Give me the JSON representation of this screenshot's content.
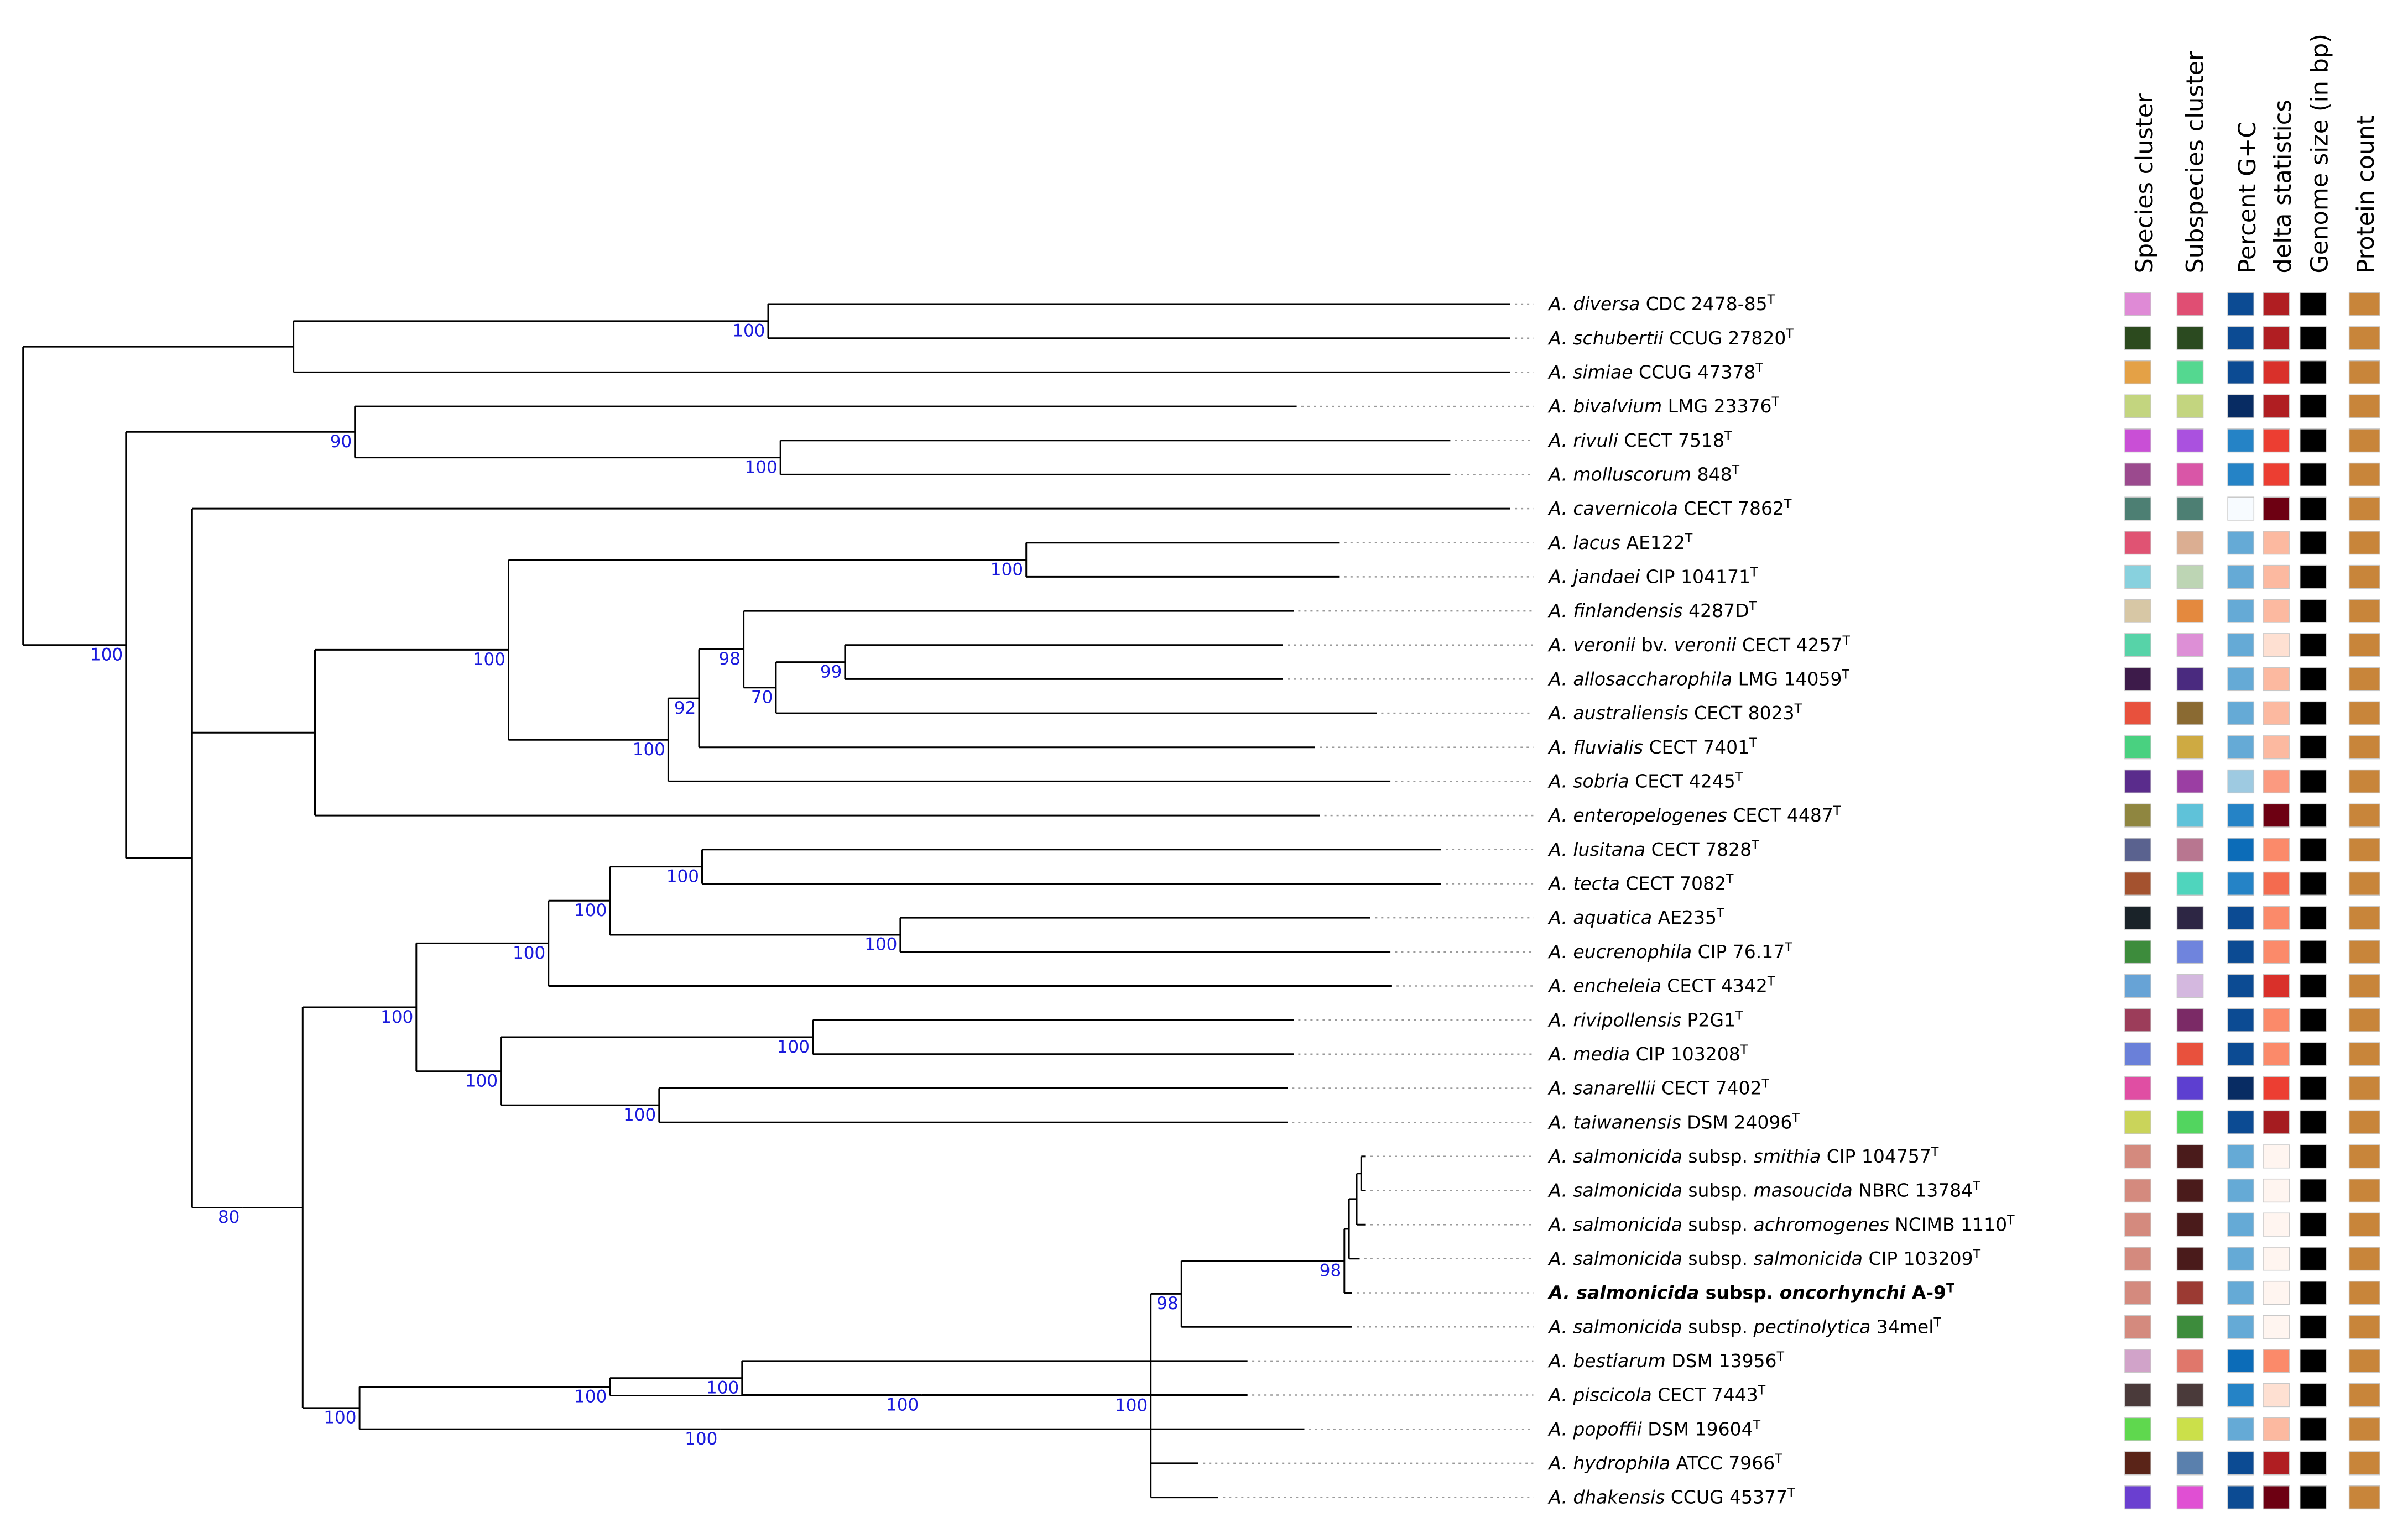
{
  "columns": [
    {
      "key": "species_cluster",
      "label": "Species cluster"
    },
    {
      "key": "subspecies_cluster",
      "label": "Subspecies cluster"
    },
    {
      "key": "gc",
      "label": "Percent G+C"
    },
    {
      "key": "delta",
      "label": "delta statistics"
    },
    {
      "key": "genome",
      "label": "Genome size (in bp)"
    },
    {
      "key": "protein",
      "label": "Protein count"
    }
  ],
  "taxa": [
    {
      "genus": "A.",
      "epithet": "diversa",
      "pre": "",
      "sub": "",
      "strain": "CDC 2478-85",
      "sup": "T",
      "bold": false,
      "colors": [
        "#df8ad6",
        "#e04e73",
        "#0c4b93",
        "#b01e22",
        "#000000",
        "#c8853a"
      ]
    },
    {
      "genus": "A.",
      "epithet": "schubertii",
      "pre": "",
      "sub": "",
      "strain": "CCUG 27820",
      "sup": "T",
      "bold": false,
      "colors": [
        "#2c4a1e",
        "#2b4a20",
        "#0c4b93",
        "#b01e22",
        "#000000",
        "#c8853a"
      ]
    },
    {
      "genus": "A.",
      "epithet": "simiae",
      "pre": "",
      "sub": "",
      "strain": "CCUG 47378",
      "sup": "T",
      "bold": false,
      "colors": [
        "#e4a146",
        "#54d890",
        "#0c4b93",
        "#d9302a",
        "#000000",
        "#c8853a"
      ]
    },
    {
      "genus": "A.",
      "epithet": "bivalvium",
      "pre": "",
      "sub": "",
      "strain": "LMG 23376",
      "sup": "T",
      "bold": false,
      "colors": [
        "#c3d57f",
        "#c3d57f",
        "#082c63",
        "#b01e22",
        "#000000",
        "#c8853a"
      ]
    },
    {
      "genus": "A.",
      "epithet": "rivuli",
      "pre": "",
      "sub": "",
      "strain": "CECT 7518",
      "sup": "T",
      "bold": false,
      "colors": [
        "#c94fd6",
        "#aa51df",
        "#2583c6",
        "#ec3e32",
        "#000000",
        "#c8853a"
      ]
    },
    {
      "genus": "A.",
      "epithet": "molluscorum",
      "pre": "",
      "sub": "",
      "strain": "848",
      "sup": "T",
      "bold": false,
      "colors": [
        "#9b4a8e",
        "#d956a7",
        "#2583c6",
        "#ec3e32",
        "#000000",
        "#c8853a"
      ]
    },
    {
      "genus": "A.",
      "epithet": "cavernicola",
      "pre": "",
      "sub": "",
      "strain": "CECT 7862",
      "sup": "T",
      "bold": false,
      "colors": [
        "#4d7f73",
        "#4d7f73",
        "#f7fbff",
        "#6d0012",
        "#000000",
        "#c8853a"
      ]
    },
    {
      "genus": "A.",
      "epithet": "lacus",
      "pre": "",
      "sub": "",
      "strain": "AE122",
      "sup": "T",
      "bold": false,
      "colors": [
        "#e05373",
        "#dbae92",
        "#65aad6",
        "#fcb9a0",
        "#000000",
        "#c8853a"
      ]
    },
    {
      "genus": "A.",
      "epithet": "jandaei",
      "pre": "",
      "sub": "",
      "strain": "CIP 104171",
      "sup": "T",
      "bold": false,
      "colors": [
        "#88d1de",
        "#bdd5b4",
        "#65aad6",
        "#fcb9a0",
        "#000000",
        "#c8853a"
      ]
    },
    {
      "genus": "A.",
      "epithet": "finlandensis",
      "pre": "",
      "sub": "",
      "strain": "4287D",
      "sup": "T",
      "bold": false,
      "colors": [
        "#d7c7a5",
        "#e4893e",
        "#65aad6",
        "#fcb9a0",
        "#000000",
        "#c8853a"
      ]
    },
    {
      "genus": "A.",
      "epithet": "veronii",
      "pre": "",
      "sub": "bv. veronii",
      "strain": "CECT 4257",
      "sup": "T",
      "bold": false,
      "colors": [
        "#57d3a8",
        "#dd8fd6",
        "#65aad6",
        "#fee0d2",
        "#000000",
        "#c8853a"
      ]
    },
    {
      "genus": "A.",
      "epithet": "allosaccharophila",
      "pre": "",
      "sub": "",
      "strain": "LMG 14059",
      "sup": "T",
      "bold": false,
      "colors": [
        "#3d1b4a",
        "#4a2a7f",
        "#65aad6",
        "#fcb9a0",
        "#000000",
        "#c8853a"
      ]
    },
    {
      "genus": "A.",
      "epithet": "australiensis",
      "pre": "",
      "sub": "",
      "strain": "CECT 8023",
      "sup": "T",
      "bold": false,
      "colors": [
        "#e8513d",
        "#8a6a32",
        "#65aad6",
        "#fcb9a0",
        "#000000",
        "#c8853a"
      ]
    },
    {
      "genus": "A.",
      "epithet": "fluvialis",
      "pre": "",
      "sub": "",
      "strain": "CECT 7401",
      "sup": "T",
      "bold": false,
      "colors": [
        "#49d180",
        "#ceaa42",
        "#65aad6",
        "#fcb9a0",
        "#000000",
        "#c8853a"
      ]
    },
    {
      "genus": "A.",
      "epithet": "sobria",
      "pre": "",
      "sub": "",
      "strain": "CECT 4245",
      "sup": "T",
      "bold": false,
      "colors": [
        "#5a2c8c",
        "#9b3ea3",
        "#9ecae1",
        "#fb9a80",
        "#000000",
        "#c8853a"
      ]
    },
    {
      "genus": "A.",
      "epithet": "enteropelogenes",
      "pre": "",
      "sub": "",
      "strain": "CECT 4487",
      "sup": "T",
      "bold": false,
      "colors": [
        "#8f8640",
        "#5fc2d9",
        "#2583c6",
        "#6d0012",
        "#000000",
        "#c8853a"
      ]
    },
    {
      "genus": "A.",
      "epithet": "lusitana",
      "pre": "",
      "sub": "",
      "strain": "CECT 7828",
      "sup": "T",
      "bold": false,
      "colors": [
        "#5a628f",
        "#b87690",
        "#0c6cb8",
        "#fb8a6a",
        "#000000",
        "#c8853a"
      ]
    },
    {
      "genus": "A.",
      "epithet": "tecta",
      "pre": "",
      "sub": "",
      "strain": "CECT 7082",
      "sup": "T",
      "bold": false,
      "colors": [
        "#a4522f",
        "#4fd5bd",
        "#2583c6",
        "#f46b4f",
        "#000000",
        "#c8853a"
      ]
    },
    {
      "genus": "A.",
      "epithet": "aquatica",
      "pre": "",
      "sub": "",
      "strain": "AE235",
      "sup": "T",
      "bold": false,
      "colors": [
        "#1a2329",
        "#2d2644",
        "#0c4b93",
        "#fb8a6a",
        "#000000",
        "#c8853a"
      ]
    },
    {
      "genus": "A.",
      "epithet": "eucrenophila",
      "pre": "",
      "sub": "",
      "strain": "CIP 76.17",
      "sup": "T",
      "bold": false,
      "colors": [
        "#3d8c3c",
        "#6f84dd",
        "#0c4b93",
        "#fb8a6a",
        "#000000",
        "#c8853a"
      ]
    },
    {
      "genus": "A.",
      "epithet": "encheleia",
      "pre": "",
      "sub": "",
      "strain": "CECT 4342",
      "sup": "T",
      "bold": false,
      "colors": [
        "#67a3d6",
        "#d4b8df",
        "#0c4b93",
        "#d9302a",
        "#000000",
        "#c8853a"
      ]
    },
    {
      "genus": "A.",
      "epithet": "rivipollensis",
      "pre": "",
      "sub": "",
      "strain": "P2G1",
      "sup": "T",
      "bold": false,
      "colors": [
        "#9c3d5a",
        "#7b2a66",
        "#0c4b93",
        "#fb8a6a",
        "#000000",
        "#c8853a"
      ]
    },
    {
      "genus": "A.",
      "epithet": "media",
      "pre": "",
      "sub": "",
      "strain": "CIP 103208",
      "sup": "T",
      "bold": false,
      "colors": [
        "#6a80d9",
        "#e8513d",
        "#0c4b93",
        "#fb8a6a",
        "#000000",
        "#c8853a"
      ]
    },
    {
      "genus": "A.",
      "epithet": "sanarellii",
      "pre": "",
      "sub": "",
      "strain": "CECT 7402",
      "sup": "T",
      "bold": false,
      "colors": [
        "#e04ea3",
        "#5d3fd0",
        "#082c63",
        "#ec3e32",
        "#000000",
        "#c8853a"
      ]
    },
    {
      "genus": "A.",
      "epithet": "taiwanensis",
      "pre": "",
      "sub": "",
      "strain": "DSM 24096",
      "sup": "T",
      "bold": false,
      "colors": [
        "#cad45a",
        "#52d55f",
        "#0c4b93",
        "#a51c20",
        "#000000",
        "#c8853a"
      ]
    },
    {
      "genus": "A.",
      "epithet": "salmonicida",
      "pre": "",
      "sub": "subsp. smithia",
      "strain": "CIP 104757",
      "sup": "T",
      "bold": false,
      "colors": [
        "#d48a7e",
        "#4a1b1b",
        "#65aad6",
        "#fff5f0",
        "#000000",
        "#c8853a"
      ]
    },
    {
      "genus": "A.",
      "epithet": "salmonicida",
      "pre": "",
      "sub": "subsp. masoucida",
      "strain": "NBRC 13784",
      "sup": "T",
      "bold": false,
      "colors": [
        "#d48a7e",
        "#4a1b1b",
        "#65aad6",
        "#fff5f0",
        "#000000",
        "#c8853a"
      ]
    },
    {
      "genus": "A.",
      "epithet": "salmonicida",
      "pre": "",
      "sub": "subsp. achromogenes",
      "strain": "NCIMB 1110",
      "sup": "T",
      "bold": false,
      "colors": [
        "#d48a7e",
        "#4a1b1b",
        "#65aad6",
        "#fff5f0",
        "#000000",
        "#c8853a"
      ]
    },
    {
      "genus": "A.",
      "epithet": "salmonicida",
      "pre": "",
      "sub": "subsp. salmonicida",
      "strain": "CIP 103209",
      "sup": "T",
      "bold": false,
      "colors": [
        "#d48a7e",
        "#4a1b1b",
        "#65aad6",
        "#fff5f0",
        "#000000",
        "#c8853a"
      ]
    },
    {
      "genus": "A.",
      "epithet": "salmonicida",
      "pre": "",
      "sub": "subsp. oncorhynchi",
      "strain": "A-9",
      "sup": "T",
      "bold": true,
      "colors": [
        "#d48a7e",
        "#9b3a33",
        "#65aad6",
        "#fff5f0",
        "#000000",
        "#c8853a"
      ]
    },
    {
      "genus": "A.",
      "epithet": "salmonicida",
      "pre": "",
      "sub": "subsp. pectinolytica",
      "strain": "34mel",
      "sup": "T",
      "bold": false,
      "colors": [
        "#d48a7e",
        "#3d8c3c",
        "#65aad6",
        "#fff5f0",
        "#000000",
        "#c8853a"
      ]
    },
    {
      "genus": "A.",
      "epithet": "bestiarum",
      "pre": "",
      "sub": "",
      "strain": "DSM 13956",
      "sup": "T",
      "bold": false,
      "colors": [
        "#d1a3c9",
        "#e0776b",
        "#0c6cb8",
        "#fb8a6a",
        "#000000",
        "#c8853a"
      ]
    },
    {
      "genus": "A.",
      "epithet": "piscicola",
      "pre": "",
      "sub": "",
      "strain": "CECT 7443",
      "sup": "T",
      "bold": false,
      "colors": [
        "#4a3a3a",
        "#4a3a3a",
        "#2583c6",
        "#fee0d2",
        "#000000",
        "#c8853a"
      ]
    },
    {
      "genus": "A.",
      "epithet": "popoffii",
      "pre": "",
      "sub": "",
      "strain": "DSM 19604",
      "sup": "T",
      "bold": false,
      "colors": [
        "#5fd84e",
        "#cbe04a",
        "#65aad6",
        "#fcb9a0",
        "#000000",
        "#c8853a"
      ]
    },
    {
      "genus": "A.",
      "epithet": "hydrophila",
      "pre": "",
      "sub": "",
      "strain": "ATCC 7966",
      "sup": "T",
      "bold": false,
      "colors": [
        "#5a2418",
        "#5a80ad",
        "#0c4b93",
        "#b01e22",
        "#000000",
        "#c8853a"
      ]
    },
    {
      "genus": "A.",
      "epithet": "dhakensis",
      "pre": "",
      "sub": "",
      "strain": "CCUG 45377",
      "sup": "T",
      "bold": false,
      "colors": [
        "#6a3fd0",
        "#e04fd3",
        "#0c4b93",
        "#6d0012",
        "#000000",
        "#c8853a"
      ]
    }
  ],
  "tree": {
    "branch_color": "#000000",
    "support_color": "#1a1adc",
    "nodes": [
      {
        "id": "n1",
        "parent": "root",
        "depth": 191,
        "support": ""
      },
      {
        "id": "n2",
        "parent": "n1",
        "depth": 500,
        "support": "100"
      },
      {
        "id": "n3",
        "parent": "root",
        "depth": 82,
        "support": "100"
      },
      {
        "id": "n4",
        "parent": "n3",
        "depth": 231,
        "support": "90"
      },
      {
        "id": "n5",
        "parent": "n4",
        "depth": 508,
        "support": "100"
      },
      {
        "id": "n6",
        "parent": "n3",
        "depth": 125,
        "support": ""
      },
      {
        "id": "n7",
        "parent": "n6",
        "depth": 205,
        "support": ""
      },
      {
        "id": "n8",
        "parent": "n7",
        "depth": 331,
        "support": "100"
      },
      {
        "id": "n9",
        "parent": "n8",
        "depth": 668,
        "support": "100"
      },
      {
        "id": "n10",
        "parent": "n8",
        "depth": 435,
        "support": "100"
      },
      {
        "id": "n11",
        "parent": "n10",
        "depth": 455,
        "support": "92"
      },
      {
        "id": "n12",
        "parent": "n11",
        "depth": 484,
        "support": "98"
      },
      {
        "id": "n13",
        "parent": "n12",
        "depth": 505,
        "support": "70"
      },
      {
        "id": "n14",
        "parent": "n13",
        "depth": 550,
        "support": "99"
      },
      {
        "id": "n15",
        "parent": "n6",
        "depth": 158,
        "support": "80"
      },
      {
        "id": "n16",
        "parent": "n15",
        "depth": 197,
        "support": ""
      },
      {
        "id": "n17",
        "parent": "n16",
        "depth": 271,
        "support": "100"
      },
      {
        "id": "n18",
        "parent": "n17",
        "depth": 357,
        "support": "100"
      },
      {
        "id": "n19",
        "parent": "n18",
        "depth": 397,
        "support": "100"
      },
      {
        "id": "n20",
        "parent": "n19",
        "depth": 457,
        "support": "100"
      },
      {
        "id": "n21",
        "parent": "n19",
        "depth": 586,
        "support": "100"
      },
      {
        "id": "n22",
        "parent": "n17",
        "depth": 326,
        "support": "100"
      },
      {
        "id": "n23",
        "parent": "n22",
        "depth": 529,
        "support": "100"
      },
      {
        "id": "n24",
        "parent": "n22",
        "depth": 429,
        "support": "100"
      },
      {
        "id": "n25",
        "parent": "n16",
        "depth": 234,
        "support": "100"
      },
      {
        "id": "n26",
        "parent": "n25",
        "depth": 397,
        "support": "100"
      },
      {
        "id": "n27",
        "parent": "n26",
        "depth": 749,
        "support": "100"
      },
      {
        "id": "n28",
        "parent": "n27",
        "depth": 769,
        "support": "98"
      },
      {
        "id": "n29",
        "parent": "n28",
        "depth": 875,
        "support": "98"
      },
      {
        "id": "n30",
        "parent": "n29",
        "depth": 878,
        "support": ""
      },
      {
        "id": "n31",
        "parent": "n30",
        "depth": 883,
        "support": ""
      },
      {
        "id": "n32",
        "parent": "n31",
        "depth": 886,
        "support": ""
      },
      {
        "id": "n33",
        "parent": "n26",
        "depth": 483,
        "support": "100"
      },
      {
        "id": "n34",
        "parent": "n33",
        "depth": 600,
        "support": "100"
      },
      {
        "id": "n35",
        "parent": "n25",
        "depth": 469,
        "support": "100"
      }
    ],
    "leaves": [
      {
        "taxon": 0,
        "parent": "n2",
        "depth": 983
      },
      {
        "taxon": 1,
        "parent": "n2",
        "depth": 983
      },
      {
        "taxon": 2,
        "parent": "n1",
        "depth": 983
      },
      {
        "taxon": 3,
        "parent": "n4",
        "depth": 844
      },
      {
        "taxon": 4,
        "parent": "n5",
        "depth": 944
      },
      {
        "taxon": 5,
        "parent": "n5",
        "depth": 944
      },
      {
        "taxon": 6,
        "parent": "n6",
        "depth": 983
      },
      {
        "taxon": 7,
        "parent": "n9",
        "depth": 872
      },
      {
        "taxon": 8,
        "parent": "n9",
        "depth": 872
      },
      {
        "taxon": 9,
        "parent": "n12",
        "depth": 842
      },
      {
        "taxon": 10,
        "parent": "n14",
        "depth": 835
      },
      {
        "taxon": 11,
        "parent": "n14",
        "depth": 835
      },
      {
        "taxon": 12,
        "parent": "n13",
        "depth": 896
      },
      {
        "taxon": 13,
        "parent": "n11",
        "depth": 856
      },
      {
        "taxon": 14,
        "parent": "n10",
        "depth": 905
      },
      {
        "taxon": 15,
        "parent": "n7",
        "depth": 859
      },
      {
        "taxon": 16,
        "parent": "n20",
        "depth": 938
      },
      {
        "taxon": 17,
        "parent": "n20",
        "depth": 938
      },
      {
        "taxon": 18,
        "parent": "n21",
        "depth": 892
      },
      {
        "taxon": 19,
        "parent": "n21",
        "depth": 905
      },
      {
        "taxon": 20,
        "parent": "n18",
        "depth": 906
      },
      {
        "taxon": 21,
        "parent": "n23",
        "depth": 842
      },
      {
        "taxon": 22,
        "parent": "n23",
        "depth": 842
      },
      {
        "taxon": 23,
        "parent": "n24",
        "depth": 838
      },
      {
        "taxon": 24,
        "parent": "n24",
        "depth": 838
      },
      {
        "taxon": 25,
        "parent": "n32",
        "depth": 889
      },
      {
        "taxon": 26,
        "parent": "n32",
        "depth": 889
      },
      {
        "taxon": 27,
        "parent": "n31",
        "depth": 889
      },
      {
        "taxon": 28,
        "parent": "n30",
        "depth": 885
      },
      {
        "taxon": 29,
        "parent": "n29",
        "depth": 880
      },
      {
        "taxon": 30,
        "parent": "n28",
        "depth": 880
      },
      {
        "taxon": 31,
        "parent": "n33",
        "depth": 812
      },
      {
        "taxon": 32,
        "parent": "n34",
        "depth": 812
      },
      {
        "taxon": 33,
        "parent": "n35",
        "depth": 849
      },
      {
        "taxon": 34,
        "parent": "n27",
        "depth": 780
      },
      {
        "taxon": 35,
        "parent": "n27",
        "depth": 793
      }
    ]
  }
}
